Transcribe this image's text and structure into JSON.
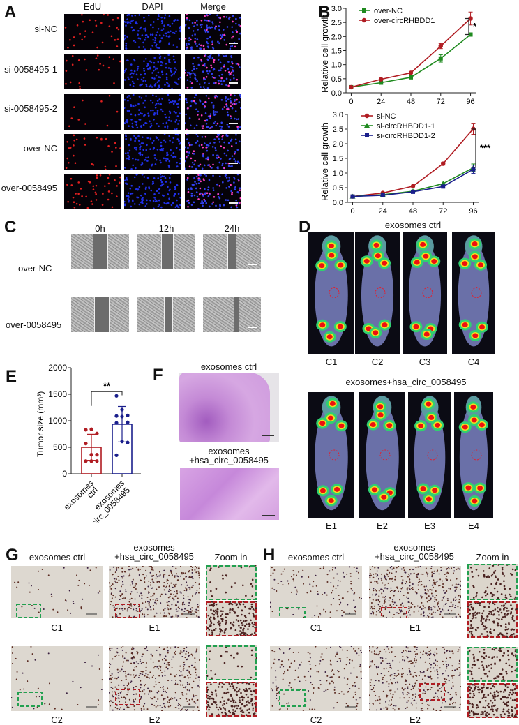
{
  "panels": {
    "A": {
      "label": "A",
      "columns": [
        "EdU",
        "DAPI",
        "Merge"
      ],
      "rows": [
        "si-NC",
        "si-0058495-1",
        "si-0058495-2",
        "over-NC",
        "over-0058495"
      ]
    },
    "B": {
      "label": "B"
    },
    "C": {
      "label": "C",
      "columns": [
        "0h",
        "12h",
        "24h"
      ],
      "rows": [
        "over-NC",
        "over-0058495"
      ]
    },
    "D": {
      "label": "D",
      "group1_title": "exosomes ctrl",
      "group1_ids": [
        "C1",
        "C2",
        "C3",
        "C4"
      ],
      "group2_title": "exosomes+hsa_circ_0058495",
      "group2_ids": [
        "E1",
        "E2",
        "E3",
        "E4"
      ]
    },
    "E": {
      "label": "E"
    },
    "F": {
      "label": "F",
      "top_title": "exosomes ctrl",
      "bottom_title_line1": "exosomes",
      "bottom_title_line2": "+hsa_circ_0058495"
    },
    "G": {
      "label": "G",
      "col1_title": "exosomes ctrl",
      "col2_title_line1": "exosomes",
      "col2_title_line2": "+hsa_circ_0058495",
      "col3_title": "Zoom in",
      "row1_ids": [
        "C1",
        "E1"
      ],
      "row2_ids": [
        "C2",
        "E2"
      ]
    },
    "H": {
      "label": "H",
      "col1_title": "exosomes ctrl",
      "col2_title_line1": "exosomes",
      "col2_title_line2": "+hsa_circ_0058495",
      "col3_title": "Zoom in",
      "row1_ids": [
        "C1",
        "E1"
      ],
      "row2_ids": [
        "C2",
        "E2"
      ]
    }
  },
  "chart_data": [
    {
      "id": "B-top",
      "type": "line",
      "title": "",
      "xlabel": "",
      "ylabel": "Relative cell growth",
      "x": [
        0,
        24,
        48,
        72,
        96
      ],
      "ylim": [
        0,
        3.0
      ],
      "yticks": [
        "0.0",
        "0.5",
        "1.0",
        "1.5",
        "2.0",
        "2.5",
        "3.0"
      ],
      "xticks": [
        "0",
        "24",
        "48",
        "72",
        "96"
      ],
      "legend_position": "upper-left",
      "series": [
        {
          "name": "over-NC",
          "color": "#1f8a1f",
          "marker": "square",
          "values": [
            0.2,
            0.36,
            0.55,
            1.22,
            2.07
          ],
          "errors": [
            0.02,
            0.03,
            0.03,
            0.13,
            0.03
          ]
        },
        {
          "name": "over-circRHBDD1",
          "color": "#b01c22",
          "marker": "circle",
          "values": [
            0.2,
            0.48,
            0.71,
            1.66,
            2.64
          ],
          "errors": [
            0.02,
            0.03,
            0.03,
            0.09,
            0.23
          ]
        }
      ],
      "annotation": "*"
    },
    {
      "id": "B-bottom",
      "type": "line",
      "title": "",
      "xlabel": "",
      "ylabel": "Relative cell growth",
      "x": [
        0,
        24,
        48,
        72,
        96
      ],
      "ylim": [
        0,
        3.0
      ],
      "yticks": [
        "0.0",
        "0.5",
        "1.0",
        "1.5",
        "2.0",
        "2.5",
        "3.0"
      ],
      "xticks": [
        "0",
        "24",
        "48",
        "72",
        "96"
      ],
      "legend_position": "upper-left",
      "series": [
        {
          "name": "si-NC",
          "color": "#b01c22",
          "marker": "circle",
          "values": [
            0.2,
            0.32,
            0.55,
            1.32,
            2.51
          ],
          "errors": [
            0.02,
            0.02,
            0.03,
            0.05,
            0.19
          ]
        },
        {
          "name": "si-circRHBDD1-1",
          "color": "#1f8a1f",
          "marker": "triangle",
          "values": [
            0.2,
            0.26,
            0.38,
            0.64,
            1.18
          ],
          "errors": [
            0.02,
            0.02,
            0.02,
            0.03,
            0.13
          ]
        },
        {
          "name": "si-circRHBDD1-2",
          "color": "#1a1f8c",
          "marker": "square",
          "values": [
            0.2,
            0.24,
            0.36,
            0.54,
            1.13
          ],
          "errors": [
            0.02,
            0.02,
            0.02,
            0.03,
            0.14
          ]
        }
      ],
      "annotation": "***"
    },
    {
      "id": "E",
      "type": "bar",
      "title": "",
      "xlabel": "",
      "ylabel": "Tumor size (mm³)",
      "categories": [
        "exosomes ctrl",
        "exosomes +hsa_circ_0058495"
      ],
      "values": [
        500,
        935
      ],
      "errors": [
        245,
        335
      ],
      "colors": [
        "#b01c22",
        "#1a1f8c"
      ],
      "points": [
        [
          830,
          840,
          760,
          570,
          360,
          360,
          240,
          240,
          240
        ],
        [
          1470,
          1210,
          1100,
          1090,
          1080,
          970,
          960,
          610,
          590,
          350
        ]
      ],
      "ylim": [
        0,
        2000
      ],
      "yticks": [
        "0",
        "500",
        "1000",
        "1500",
        "2000"
      ],
      "annotation": "**"
    }
  ]
}
